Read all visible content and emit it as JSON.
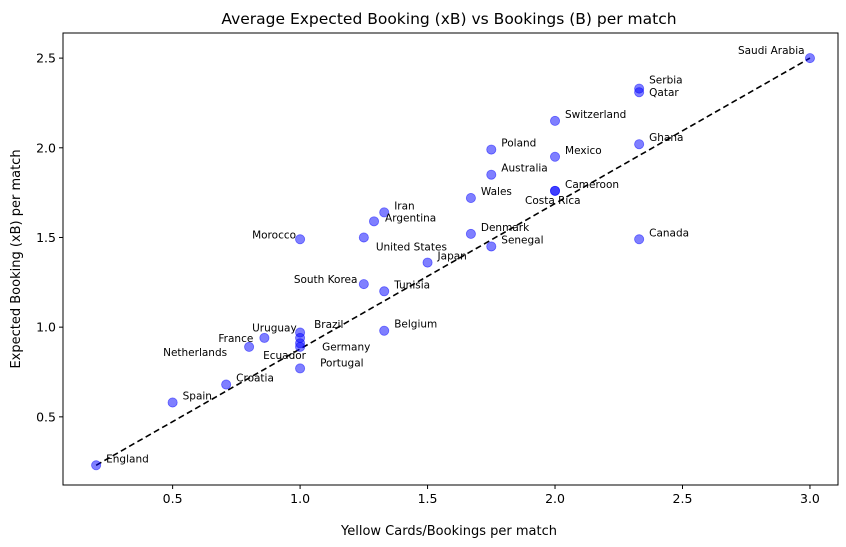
{
  "chart_data": {
    "type": "scatter",
    "title": "Average Expected Booking (xB) vs Bookings (B) per match",
    "xlabel": "Yellow Cards/Bookings per match",
    "ylabel": "Expected Booking (xB) per match",
    "xlim": [
      0.07,
      3.11
    ],
    "ylim": [
      0.12,
      2.64
    ],
    "xticks": [
      0.5,
      1.0,
      1.5,
      2.0,
      2.5,
      3.0
    ],
    "yticks": [
      0.5,
      1.0,
      1.5,
      2.0,
      2.5
    ],
    "xtick_labels": [
      "0.5",
      "1.0",
      "1.5",
      "2.0",
      "2.5",
      "3.0"
    ],
    "ytick_labels": [
      "0.5",
      "1.0",
      "1.5",
      "2.0",
      "2.5"
    ],
    "point_color": "#0000ff",
    "point_alpha": 0.5,
    "reference_line": {
      "style": "dashed",
      "color": "#000000",
      "x": [
        0.2,
        3.0
      ],
      "y": [
        0.23,
        2.5
      ]
    },
    "points": [
      {
        "label": "England",
        "x": 0.2,
        "y": 0.23
      },
      {
        "label": "Spain",
        "x": 0.5,
        "y": 0.58
      },
      {
        "label": "Croatia",
        "x": 0.71,
        "y": 0.68
      },
      {
        "label": "Netherlands",
        "x": 0.8,
        "y": 0.89
      },
      {
        "label": "France",
        "x": 0.86,
        "y": 0.94
      },
      {
        "label": "Uruguay",
        "x": 1.0,
        "y": 0.97
      },
      {
        "label": "Brazil",
        "x": 1.0,
        "y": 0.94
      },
      {
        "label": "Germany",
        "x": 1.0,
        "y": 0.91
      },
      {
        "label": "Ecuador",
        "x": 1.0,
        "y": 0.89
      },
      {
        "label": "Portugal",
        "x": 1.0,
        "y": 0.77
      },
      {
        "label": "Morocco",
        "x": 1.0,
        "y": 1.49
      },
      {
        "label": "South Korea",
        "x": 1.25,
        "y": 1.24
      },
      {
        "label": "United States",
        "x": 1.25,
        "y": 1.5
      },
      {
        "label": "Argentina",
        "x": 1.29,
        "y": 1.59
      },
      {
        "label": "Iran",
        "x": 1.33,
        "y": 1.64
      },
      {
        "label": "Tunisia",
        "x": 1.33,
        "y": 1.2
      },
      {
        "label": "Belgium",
        "x": 1.33,
        "y": 0.98
      },
      {
        "label": "Japan",
        "x": 1.5,
        "y": 1.36
      },
      {
        "label": "Wales",
        "x": 1.67,
        "y": 1.72
      },
      {
        "label": "Denmark",
        "x": 1.67,
        "y": 1.52
      },
      {
        "label": "Senegal",
        "x": 1.75,
        "y": 1.45
      },
      {
        "label": "Australia",
        "x": 1.75,
        "y": 1.85
      },
      {
        "label": "Poland",
        "x": 1.75,
        "y": 1.99
      },
      {
        "label": "Switzerland",
        "x": 2.0,
        "y": 2.15
      },
      {
        "label": "Mexico",
        "x": 2.0,
        "y": 1.95
      },
      {
        "label": "Cameroon",
        "x": 2.0,
        "y": 1.76
      },
      {
        "label": "Costa Rica",
        "x": 2.0,
        "y": 1.76
      },
      {
        "label": "Serbia",
        "x": 2.33,
        "y": 2.33
      },
      {
        "label": "Qatar",
        "x": 2.33,
        "y": 2.31
      },
      {
        "label": "Ghana",
        "x": 2.33,
        "y": 2.02
      },
      {
        "label": "Canada",
        "x": 2.33,
        "y": 1.49
      },
      {
        "label": "Saudi Arabia",
        "x": 3.0,
        "y": 2.5
      }
    ]
  }
}
